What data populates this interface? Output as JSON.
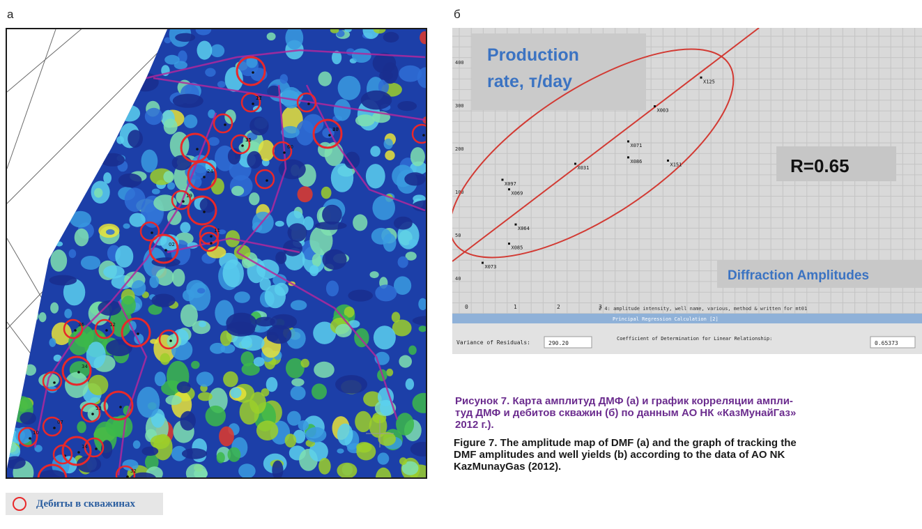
{
  "panel_a": {
    "letter": "а",
    "well_labels": [
      "17",
      "47",
      "15",
      "60",
      "24",
      "19",
      "11",
      "02",
      "12",
      "36",
      "34",
      "13",
      "07",
      "14",
      "10",
      "32",
      "21",
      "20",
      "31"
    ],
    "legend_text": "Дебиты в скважинах",
    "colors": {
      "well_circle": "#e8282a",
      "fault_line": "#b0289c"
    }
  },
  "panel_b": {
    "letter": "б",
    "title": "Production\nrate, т/day",
    "r_label": "R=0.65",
    "x_axis_label": "Diffraction Amplitudes",
    "y_ticks": [
      "400",
      "300",
      "200",
      "100",
      "50",
      "40"
    ],
    "x_ticks": [
      "0",
      "1",
      "2",
      "3"
    ],
    "bottom_note": "2 4: amplitude intensity, well name, various, method & written for mt01",
    "status_bar": "Principal Regression Calculation [2]",
    "variance_label": "Variance of Residuals:",
    "variance_value": "290.20",
    "coef_label": "Coefficient of Determination for Linear Relationship:",
    "coef_value": "0.65373",
    "chart_data": {
      "type": "scatter",
      "points": [
        {
          "label": "X125",
          "x": 3.8,
          "y": 355
        },
        {
          "label": "X003",
          "x": 3.1,
          "y": 310
        },
        {
          "label": "X071",
          "x": 2.7,
          "y": 255
        },
        {
          "label": "X086",
          "x": 2.7,
          "y": 230
        },
        {
          "label": "X151",
          "x": 3.3,
          "y": 225
        },
        {
          "label": "X031",
          "x": 1.9,
          "y": 220
        },
        {
          "label": "X097",
          "x": 0.8,
          "y": 195
        },
        {
          "label": "X069",
          "x": 0.9,
          "y": 180
        },
        {
          "label": "X064",
          "x": 1.0,
          "y": 125
        },
        {
          "label": "X085",
          "x": 0.9,
          "y": 95
        },
        {
          "label": "X073",
          "x": 0.5,
          "y": 65
        }
      ],
      "colors": {
        "regression": "#d23a33",
        "label_box": "#c9c9c9",
        "title": "#3b73c2",
        "status_bar": "#8fb1d8"
      }
    }
  },
  "captions": {
    "ru": "Рисунок 7. Карта амплитуд ДМФ (а) и график корреляции ампли-\nтуд ДМФ и дебитов скважин (б) по данным АО НК «КазМунайГаз»\n2012 г.).",
    "en": "Figure 7. The amplitude map of DMF (a) and the graph of tracking the\nDMF amplitudes and well yields (b) according to the data of AO NK\nKazMunayGas (2012)."
  }
}
